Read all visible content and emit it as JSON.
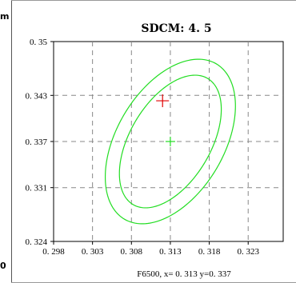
{
  "side_labels": {
    "top": "m",
    "bottom": "0"
  },
  "chart_data": {
    "type": "scatter",
    "title": "SDCM: 4. 5",
    "caption": "F6500,  x= 0. 313  y=0. 337",
    "xlim": [
      0.298,
      0.3275
    ],
    "ylim": [
      0.324,
      0.35
    ],
    "x_ticks": [
      0.298,
      0.303,
      0.308,
      0.313,
      0.318,
      0.323
    ],
    "x_tick_labels": [
      "0. 298",
      "0. 303",
      "0. 308",
      "0. 313",
      "0. 318",
      "0. 323"
    ],
    "y_ticks": [
      0.35,
      0.343,
      0.337,
      0.331,
      0.324
    ],
    "y_tick_labels": [
      "0. 35",
      "0. 343",
      "0. 337",
      "0. 331",
      "0. 324"
    ],
    "grid": true,
    "ellipse_color": "#22dd22",
    "center_color": "#22dd22",
    "measured_color": "#e00000",
    "ellipses": [
      {
        "cx": 0.313,
        "cy": 0.337,
        "a": 0.0095,
        "b": 0.0052,
        "angle_deg": 60
      },
      {
        "cx": 0.313,
        "cy": 0.337,
        "a": 0.0117,
        "b": 0.0069,
        "angle_deg": 60
      }
    ],
    "center_point": {
      "x": 0.313,
      "y": 0.337
    },
    "measured_point": {
      "x": 0.312,
      "y": 0.3423
    }
  }
}
